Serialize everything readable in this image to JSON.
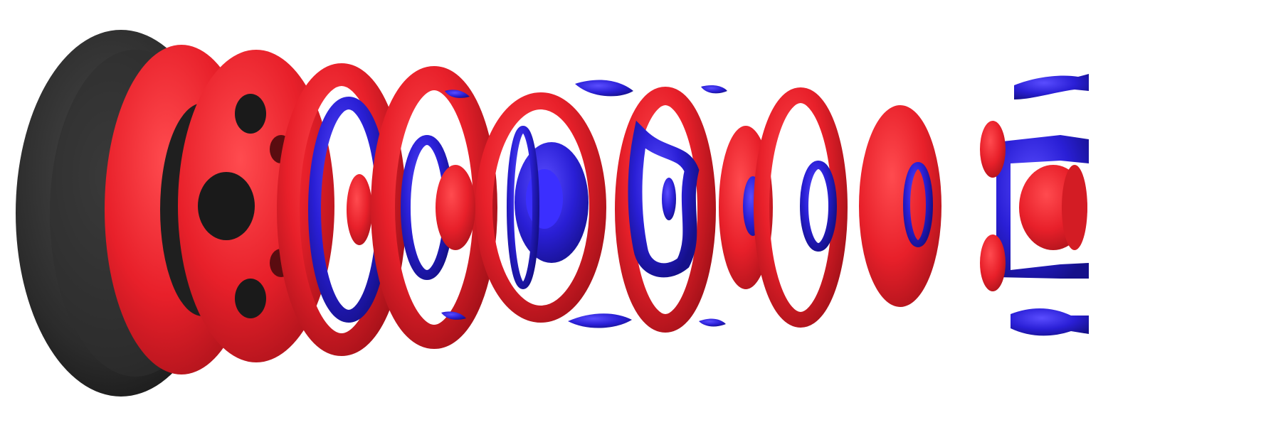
{
  "image": {
    "kind": "3d-isosurface-render",
    "palette": {
      "positive": "#e8202a",
      "positive_shade": "#a8121a",
      "negative": "#2a1fd6",
      "negative_shade": "#15108a",
      "body": "#2b2b2b",
      "background": "#ffffff"
    }
  }
}
